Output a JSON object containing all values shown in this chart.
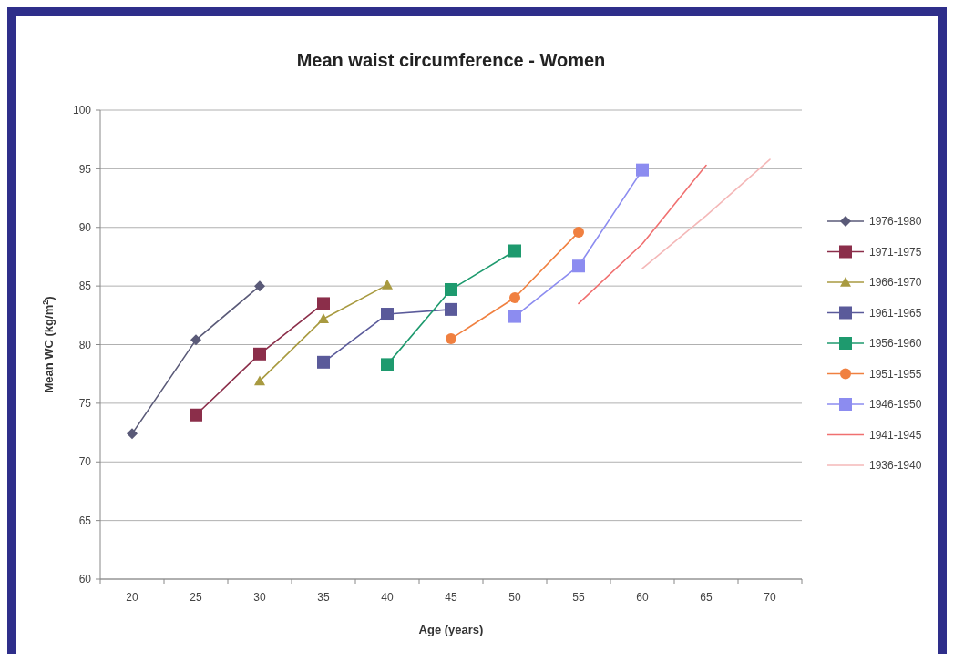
{
  "chart_data": {
    "type": "line",
    "title": "Mean waist circumference - Women",
    "xlabel": "Age (years)",
    "ylabel": "Mean WC (kg/m$^{2}$)",
    "categories": [
      "20",
      "25",
      "30",
      "35",
      "40",
      "45",
      "50",
      "55",
      "60",
      "65",
      "70"
    ],
    "series": [
      {
        "name": "1976-1980",
        "color": "#5a5a78",
        "marker": "diamond",
        "values": [
          72.4,
          80.4,
          85.0,
          null,
          null,
          null,
          null,
          null,
          null,
          null,
          null
        ]
      },
      {
        "name": "1971-1975",
        "color": "#8b2e4a",
        "marker": "square",
        "values": [
          null,
          74.0,
          79.2,
          83.5,
          null,
          null,
          null,
          null,
          null,
          null,
          null
        ]
      },
      {
        "name": "1966-1970",
        "color": "#a89a40",
        "marker": "triangle",
        "values": [
          null,
          null,
          76.9,
          82.2,
          85.1,
          null,
          null,
          null,
          null,
          null,
          null
        ]
      },
      {
        "name": "1961-1965",
        "color": "#5a5a9a",
        "marker": "square",
        "values": [
          null,
          null,
          null,
          78.5,
          82.6,
          83.0,
          null,
          null,
          null,
          null,
          null
        ]
      },
      {
        "name": "1956-1960",
        "color": "#1e9a6e",
        "marker": "square",
        "values": [
          null,
          null,
          null,
          null,
          78.3,
          84.7,
          88.0,
          null,
          null,
          null,
          null
        ]
      },
      {
        "name": "1951-1955",
        "color": "#f08040",
        "marker": "circle",
        "values": [
          null,
          null,
          null,
          null,
          null,
          80.5,
          84.0,
          89.6,
          null,
          null,
          null
        ]
      },
      {
        "name": "1946-1950",
        "color": "#8c8cf0",
        "marker": "square",
        "values": [
          null,
          null,
          null,
          null,
          null,
          null,
          82.4,
          86.7,
          94.9,
          null,
          null
        ]
      },
      {
        "name": "1941-1945",
        "color": "#f07070",
        "marker": "none",
        "values": [
          null,
          null,
          null,
          null,
          null,
          null,
          null,
          83.5,
          88.6,
          95.3,
          null
        ]
      },
      {
        "name": "1936-1940",
        "color": "#f4b8b8",
        "marker": "none",
        "values": [
          null,
          null,
          null,
          null,
          null,
          null,
          null,
          null,
          86.5,
          91.0,
          95.8
        ]
      }
    ],
    "ylim": [
      60,
      100
    ],
    "yticks": [
      60,
      65,
      70,
      75,
      80,
      85,
      90,
      95,
      100
    ],
    "grid": "y",
    "legend": "right"
  }
}
